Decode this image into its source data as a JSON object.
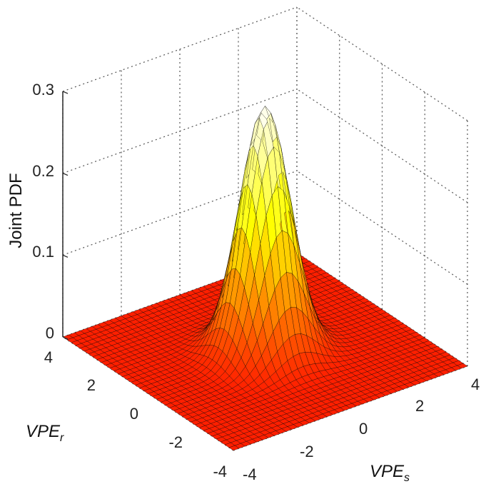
{
  "chart_data": {
    "type": "surface3d",
    "title": "",
    "xlabel": {
      "main": "VPE",
      "sub": "s"
    },
    "ylabel": {
      "main": "VPE",
      "sub": "r"
    },
    "zlabel": "Joint PDF",
    "xlim": [
      -4,
      4
    ],
    "ylim": [
      -4,
      4
    ],
    "zlim": [
      0,
      0.3
    ],
    "x_ticks": [
      "-4",
      "-2",
      "0",
      "2",
      "4"
    ],
    "y_ticks": [
      "-4",
      "-2",
      "0",
      "2",
      "4"
    ],
    "z_ticks": [
      "0",
      "0.1",
      "0.2",
      "0.3"
    ],
    "grid": true,
    "colormap": "hot",
    "surface": {
      "function": "bivariate-normal",
      "mean": [
        0,
        0
      ],
      "sigma": [
        0.72,
        0.72
      ],
      "peak": 0.3,
      "mesh_steps": 40
    },
    "colors": {
      "grid": "#555555",
      "edge": "#000000",
      "axis": "#333333"
    }
  }
}
